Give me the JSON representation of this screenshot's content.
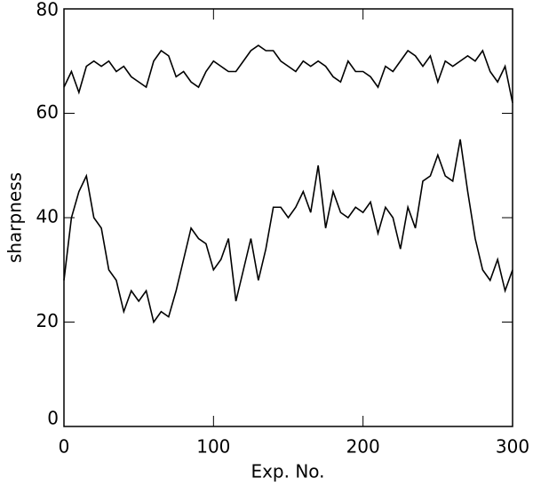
{
  "chart_data": {
    "type": "line",
    "x_label": "Exp. No.",
    "y_label": "sharpness",
    "x": [
      0,
      5,
      10,
      15,
      20,
      25,
      30,
      35,
      40,
      45,
      50,
      55,
      60,
      65,
      70,
      75,
      80,
      85,
      90,
      95,
      100,
      105,
      110,
      115,
      120,
      125,
      130,
      135,
      140,
      145,
      150,
      155,
      160,
      165,
      170,
      175,
      180,
      185,
      190,
      195,
      200,
      205,
      210,
      215,
      220,
      225,
      230,
      235,
      240,
      245,
      250,
      255,
      260,
      265,
      270,
      275,
      280,
      285,
      290,
      295,
      300
    ],
    "series": [
      {
        "color": "#000000",
        "values": [
          65,
          68,
          64,
          69,
          70,
          69,
          70,
          68,
          69,
          67,
          66,
          65,
          70,
          72,
          71,
          67,
          68,
          66,
          65,
          68,
          70,
          69,
          68,
          68,
          70,
          72,
          73,
          72,
          72,
          70,
          69,
          68,
          70,
          69,
          70,
          69,
          67,
          66,
          70,
          68,
          68,
          67,
          65,
          69,
          68,
          70,
          72,
          71,
          69,
          71,
          66,
          70,
          69,
          70,
          71,
          70,
          72,
          68,
          66,
          69,
          62
        ]
      },
      {
        "color": "#000000",
        "values": [
          28,
          40,
          45,
          48,
          40,
          38,
          30,
          28,
          22,
          26,
          24,
          26,
          20,
          22,
          21,
          26,
          32,
          38,
          36,
          35,
          30,
          32,
          36,
          24,
          30,
          36,
          28,
          34,
          42,
          42,
          40,
          42,
          45,
          41,
          50,
          38,
          45,
          41,
          40,
          42,
          41,
          43,
          37,
          42,
          40,
          34,
          42,
          38,
          47,
          48,
          52,
          48,
          47,
          55,
          45,
          36,
          30,
          28,
          32,
          26,
          30
        ]
      }
    ],
    "xlim": [
      0,
      300
    ],
    "ylim": [
      0,
      80
    ],
    "xticks": [
      0,
      100,
      200,
      300
    ],
    "yticks": [
      0,
      20,
      40,
      60,
      80
    ]
  }
}
